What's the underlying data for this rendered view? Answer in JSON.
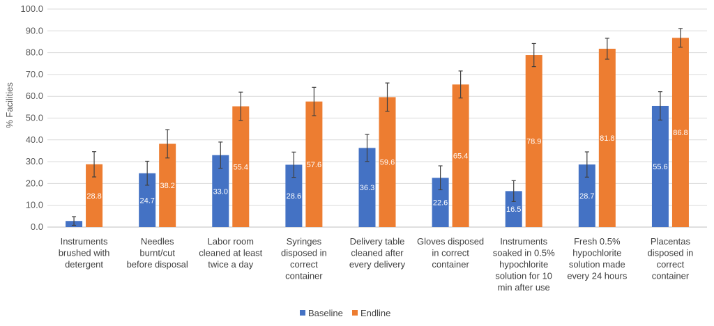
{
  "chart_data": {
    "type": "bar",
    "ylabel": "% Facilities",
    "ylim": [
      0,
      100
    ],
    "yticks": [
      "0.0",
      "10.0",
      "20.0",
      "30.0",
      "40.0",
      "50.0",
      "60.0",
      "70.0",
      "80.0",
      "90.0",
      "100.0"
    ],
    "grid": true,
    "legend_position": "bottom",
    "categories": [
      [
        "Instruments",
        "brushed with",
        "detergent"
      ],
      [
        "Needles",
        "burnt/cut",
        "before disposal"
      ],
      [
        "Labor room",
        "cleaned at least",
        "twice a day"
      ],
      [
        "Syringes",
        "disposed in",
        "correct",
        "container"
      ],
      [
        "Delivery table",
        "cleaned after",
        "every delivery"
      ],
      [
        "Gloves disposed",
        "in correct",
        "container"
      ],
      [
        "Instruments",
        "soaked in 0.5%",
        "hypochlorite",
        "solution for 10",
        "min after use"
      ],
      [
        "Fresh 0.5%",
        "hypochlorite",
        "solution made",
        "every 24 hours"
      ],
      [
        "Placentas",
        "disposed in",
        "correct",
        "container"
      ]
    ],
    "series": [
      {
        "name": "Baseline",
        "color": "#4472C4",
        "values": [
          2.8,
          24.7,
          33.0,
          28.6,
          36.3,
          22.6,
          16.5,
          28.7,
          55.6
        ],
        "labels": [
          "",
          "24.7",
          "33.0",
          "28.6",
          "36.3",
          "22.6",
          "16.5",
          "28.7",
          "55.6"
        ],
        "error": [
          2.0,
          5.5,
          6.0,
          5.8,
          6.2,
          5.5,
          4.8,
          5.8,
          6.5
        ]
      },
      {
        "name": "Endline",
        "color": "#ED7D31",
        "values": [
          28.8,
          38.2,
          55.4,
          57.6,
          59.6,
          65.4,
          78.9,
          81.8,
          86.8
        ],
        "labels": [
          "28.8",
          "38.2",
          "55.4",
          "57.6",
          "59.6",
          "65.4",
          "78.9",
          "81.8",
          "86.8"
        ],
        "error": [
          5.8,
          6.5,
          6.5,
          6.5,
          6.5,
          6.2,
          5.3,
          4.8,
          4.3
        ]
      }
    ]
  }
}
